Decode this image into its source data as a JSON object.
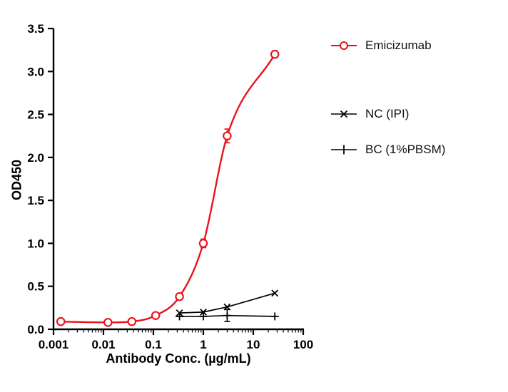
{
  "figure": {
    "background": "#ffffff",
    "accent_red": "#e8131d",
    "axis_color": "#000000"
  },
  "chart_data": {
    "type": "line",
    "title": "",
    "xlabel": "Antibody Conc. (µg/mL)",
    "ylabel": "OD450",
    "x_scale": "log",
    "xlim": [
      0.001,
      100
    ],
    "ylim": [
      0,
      3.5
    ],
    "grid": false,
    "legend_position": "right",
    "x_ticks": [
      {
        "value": 0.001,
        "label": "0.001"
      },
      {
        "value": 0.01,
        "label": "0.01"
      },
      {
        "value": 0.1,
        "label": "0.1"
      },
      {
        "value": 1,
        "label": "1"
      },
      {
        "value": 10,
        "label": "10"
      },
      {
        "value": 100,
        "label": "100"
      }
    ],
    "y_ticks": [
      {
        "value": 0.0,
        "label": "0.0"
      },
      {
        "value": 0.5,
        "label": "0.5"
      },
      {
        "value": 1.0,
        "label": "1.0"
      },
      {
        "value": 1.5,
        "label": "1.5"
      },
      {
        "value": 2.0,
        "label": "2.0"
      },
      {
        "value": 2.5,
        "label": "2.5"
      },
      {
        "value": 3.0,
        "label": "3.0"
      },
      {
        "value": 3.5,
        "label": "3.5"
      }
    ],
    "series": [
      {
        "name": "Emicizumab",
        "color": "#e8131d",
        "marker": "open-circle",
        "smooth": true,
        "x": [
          0.0014,
          0.0123,
          0.037,
          0.111,
          0.333,
          1,
          3,
          27
        ],
        "y": [
          0.09,
          0.08,
          0.09,
          0.16,
          0.38,
          1.0,
          2.25,
          3.2
        ],
        "y_err": [
          0,
          0,
          0,
          0,
          0.03,
          0.05,
          0.08,
          0.04
        ]
      },
      {
        "name": "NC (IPI)",
        "color": "#000000",
        "marker": "x",
        "smooth": false,
        "x": [
          0.333,
          1,
          3,
          27
        ],
        "y": [
          0.19,
          0.2,
          0.26,
          0.42
        ],
        "y_err": [
          0,
          0,
          0,
          0
        ]
      },
      {
        "name": "BC (1%PBSM)",
        "color": "#000000",
        "marker": "plus",
        "smooth": false,
        "x": [
          0.333,
          1,
          3,
          27
        ],
        "y": [
          0.15,
          0.15,
          0.16,
          0.15
        ],
        "y_err": [
          0,
          0,
          0.07,
          0
        ]
      }
    ]
  }
}
